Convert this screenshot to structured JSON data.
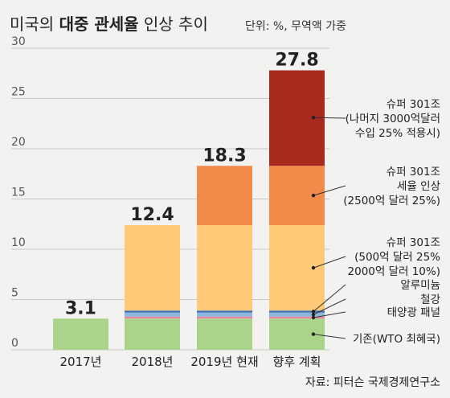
{
  "chart_data": {
    "type": "bar",
    "title_plain_1": "미국의 ",
    "title_bold": "대중 관세율",
    "title_plain_2": " 인상 추이",
    "unit": "단위: %, 무역액 가중",
    "source": "자료: 피터슨 국제경제연구소",
    "ylim": [
      0,
      30
    ],
    "yticks": [
      "0",
      "5",
      "10",
      "15",
      "20",
      "25",
      "30"
    ],
    "ytick_values": [
      0,
      5,
      10,
      15,
      20,
      25,
      30
    ],
    "categories": [
      "2017년",
      "2018년",
      "2019년 현재",
      "향후 계획"
    ],
    "totals": [
      "3.1",
      "12.4",
      "18.3",
      "27.8"
    ],
    "total_values": [
      3.1,
      12.4,
      18.3,
      27.8
    ],
    "series": [
      {
        "name": "기존(WTO 최혜국)",
        "color": "#a9d48a",
        "values": [
          3.1,
          3.1,
          3.1,
          3.1
        ]
      },
      {
        "name": "태양광 패널",
        "color": "#e8869e",
        "values": [
          0,
          0.2,
          0.2,
          0.2
        ]
      },
      {
        "name": "철강",
        "color": "#8fb6df",
        "values": [
          0,
          0.4,
          0.4,
          0.4
        ]
      },
      {
        "name": "알루미늄",
        "color": "#3e6fb2",
        "values": [
          0,
          0.2,
          0.2,
          0.2
        ]
      },
      {
        "name": "슈퍼 301조 (500억 달러 25% 2000억 달러 10%)",
        "color": "#ffc978",
        "values": [
          0,
          8.5,
          8.5,
          8.5
        ]
      },
      {
        "name": "슈퍼 301조 세율 인상 (2500억 달러 25%)",
        "color": "#f28b4a",
        "values": [
          0,
          0,
          5.9,
          5.9
        ]
      },
      {
        "name": "슈퍼 301조 (나머지 3000억달러 수입 25% 적용시)",
        "color": "#a82a1f",
        "values": [
          0,
          0,
          0,
          9.5
        ]
      }
    ],
    "annotations": [
      {
        "lines": [
          "슈퍼 301조",
          "(나머지 3000억달러",
          "수입 25% 적용시)"
        ],
        "value": 23.1
      },
      {
        "lines": [
          "슈퍼 301조",
          "세율 인상",
          "(2500억 달러 25%)"
        ],
        "value": 15.35
      },
      {
        "lines": [
          "슈퍼 301조",
          "(500억 달러 25%",
          "2000억 달러 10%)"
        ],
        "value": 8.15
      },
      {
        "lines": [
          "알루미늄"
        ],
        "value": 3.8
      },
      {
        "lines": [
          "철강"
        ],
        "value": 3.5
      },
      {
        "lines": [
          "태양광 패널"
        ],
        "value": 3.2
      },
      {
        "lines": [
          "기존(WTO 최혜국)"
        ],
        "value": 1.55
      }
    ]
  }
}
